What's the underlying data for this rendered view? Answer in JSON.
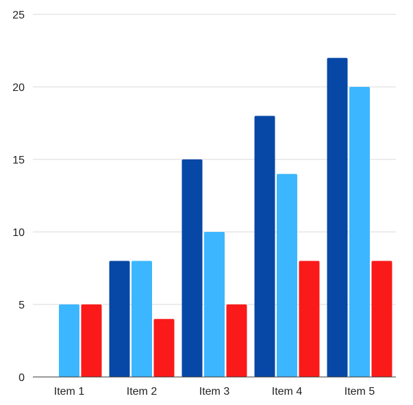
{
  "chart_data": {
    "type": "bar",
    "title": "",
    "xlabel": "",
    "ylabel": "",
    "categories": [
      "Item 1",
      "Item 2",
      "Item 3",
      "Item 4",
      "Item 5"
    ],
    "series": [
      {
        "color": "#0748a6",
        "values": [
          0,
          8,
          15,
          18,
          22
        ]
      },
      {
        "color": "#3cb7ff",
        "values": [
          5,
          8,
          10,
          14,
          20
        ]
      },
      {
        "color": "#fb1a1a",
        "values": [
          5,
          4,
          5,
          8,
          8
        ]
      }
    ],
    "ylim": [
      0,
      25
    ],
    "yticks": [
      "0",
      "5",
      "10",
      "15",
      "20",
      "25"
    ],
    "grid": true,
    "legend": "none"
  }
}
